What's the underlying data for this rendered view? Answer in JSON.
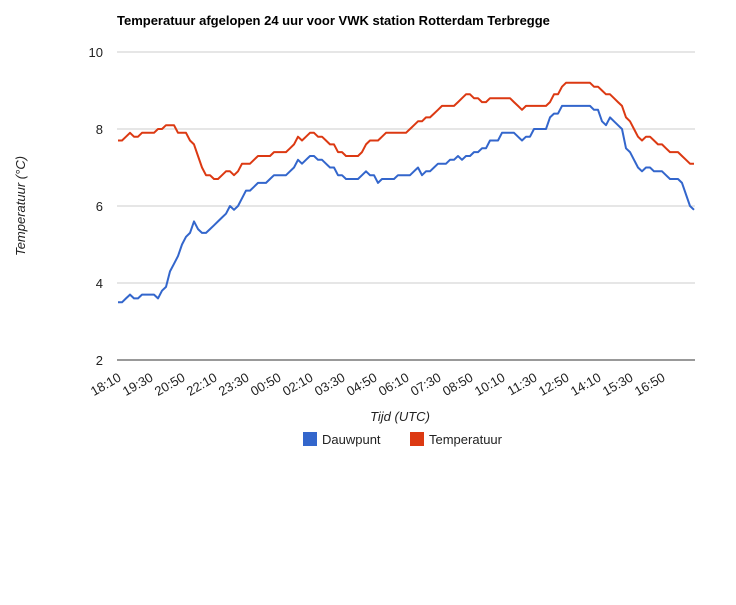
{
  "chart_data": {
    "type": "line",
    "title": "Temperatuur afgelopen 24 uur voor VWK station Rotterdam Terbregge",
    "xlabel": "Tijd (UTC)",
    "ylabel": "Temperatuur (°C)",
    "ylim": [
      2,
      10
    ],
    "yticks": [
      "2",
      "4",
      "6",
      "8",
      "10"
    ],
    "grid": true,
    "legend_position": "bottom",
    "x_interval_minutes": 10,
    "x_tick_labels": [
      "18:10",
      "19:30",
      "20:50",
      "22:10",
      "23:30",
      "00:50",
      "02:10",
      "03:30",
      "04:50",
      "06:10",
      "07:30",
      "08:50",
      "10:10",
      "11:30",
      "12:50",
      "14:10",
      "15:30",
      "16:50"
    ],
    "series": [
      {
        "name": "Dauwpunt",
        "color": "#3366cc",
        "values": [
          3.5,
          3.5,
          3.6,
          3.7,
          3.6,
          3.6,
          3.7,
          3.7,
          3.7,
          3.7,
          3.6,
          3.8,
          3.9,
          4.3,
          4.5,
          4.7,
          5.0,
          5.2,
          5.3,
          5.6,
          5.4,
          5.3,
          5.3,
          5.4,
          5.5,
          5.6,
          5.7,
          5.8,
          6.0,
          5.9,
          6.0,
          6.2,
          6.4,
          6.4,
          6.5,
          6.6,
          6.6,
          6.6,
          6.7,
          6.8,
          6.8,
          6.8,
          6.8,
          6.9,
          7.0,
          7.2,
          7.1,
          7.2,
          7.3,
          7.3,
          7.2,
          7.2,
          7.1,
          7.0,
          7.0,
          6.8,
          6.8,
          6.7,
          6.7,
          6.7,
          6.7,
          6.8,
          6.9,
          6.8,
          6.8,
          6.6,
          6.7,
          6.7,
          6.7,
          6.7,
          6.8,
          6.8,
          6.8,
          6.8,
          6.9,
          7.0,
          6.8,
          6.9,
          6.9,
          7.0,
          7.1,
          7.1,
          7.1,
          7.2,
          7.2,
          7.3,
          7.2,
          7.3,
          7.3,
          7.4,
          7.4,
          7.5,
          7.5,
          7.7,
          7.7,
          7.7,
          7.9,
          7.9,
          7.9,
          7.9,
          7.8,
          7.7,
          7.8,
          7.8,
          8.0,
          8.0,
          8.0,
          8.0,
          8.3,
          8.4,
          8.4,
          8.6,
          8.6,
          8.6,
          8.6,
          8.6,
          8.6,
          8.6,
          8.6,
          8.5,
          8.5,
          8.2,
          8.1,
          8.3,
          8.2,
          8.1,
          8.0,
          7.5,
          7.4,
          7.2,
          7.0,
          6.9,
          7.0,
          7.0,
          6.9,
          6.9,
          6.9,
          6.8,
          6.7,
          6.7,
          6.7,
          6.6,
          6.3,
          6.0,
          5.9
        ]
      },
      {
        "name": "Temperatuur",
        "color": "#dc3912",
        "values": [
          7.7,
          7.7,
          7.8,
          7.9,
          7.8,
          7.8,
          7.9,
          7.9,
          7.9,
          7.9,
          8.0,
          8.0,
          8.1,
          8.1,
          8.1,
          7.9,
          7.9,
          7.9,
          7.7,
          7.6,
          7.3,
          7.0,
          6.8,
          6.8,
          6.7,
          6.7,
          6.8,
          6.9,
          6.9,
          6.8,
          6.9,
          7.1,
          7.1,
          7.1,
          7.2,
          7.3,
          7.3,
          7.3,
          7.3,
          7.4,
          7.4,
          7.4,
          7.4,
          7.5,
          7.6,
          7.8,
          7.7,
          7.8,
          7.9,
          7.9,
          7.8,
          7.8,
          7.7,
          7.6,
          7.6,
          7.4,
          7.4,
          7.3,
          7.3,
          7.3,
          7.3,
          7.4,
          7.6,
          7.7,
          7.7,
          7.7,
          7.8,
          7.9,
          7.9,
          7.9,
          7.9,
          7.9,
          7.9,
          8.0,
          8.1,
          8.2,
          8.2,
          8.3,
          8.3,
          8.4,
          8.5,
          8.6,
          8.6,
          8.6,
          8.6,
          8.7,
          8.8,
          8.9,
          8.9,
          8.8,
          8.8,
          8.7,
          8.7,
          8.8,
          8.8,
          8.8,
          8.8,
          8.8,
          8.8,
          8.7,
          8.6,
          8.5,
          8.6,
          8.6,
          8.6,
          8.6,
          8.6,
          8.6,
          8.7,
          8.9,
          8.9,
          9.1,
          9.2,
          9.2,
          9.2,
          9.2,
          9.2,
          9.2,
          9.2,
          9.1,
          9.1,
          9.0,
          8.9,
          8.9,
          8.8,
          8.7,
          8.6,
          8.3,
          8.2,
          8.0,
          7.8,
          7.7,
          7.8,
          7.8,
          7.7,
          7.6,
          7.6,
          7.5,
          7.4,
          7.4,
          7.4,
          7.3,
          7.2,
          7.1,
          7.1
        ]
      }
    ]
  }
}
